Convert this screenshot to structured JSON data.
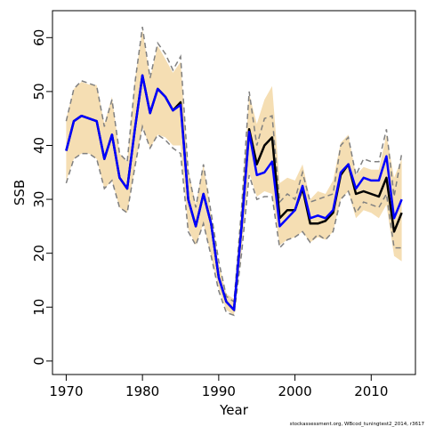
{
  "chart_data": {
    "type": "line",
    "xlabel": "Year",
    "ylabel": "SSB",
    "xlim": [
      1968.2,
      2015.8
    ],
    "ylim": [
      -2.5,
      65.0
    ],
    "x_ticks": [
      1970,
      1980,
      1990,
      2000,
      2010
    ],
    "y_ticks": [
      0,
      10,
      20,
      30,
      40,
      50,
      60
    ],
    "colors": {
      "band": "#f5deb3",
      "ci_dashed": "#808080",
      "ssb_black": "#000000",
      "ssb_blue": "#0000ff"
    },
    "x": [
      1970,
      1971,
      1972,
      1973,
      1974,
      1975,
      1976,
      1977,
      1978,
      1979,
      1980,
      1981,
      1982,
      1983,
      1984,
      1985,
      1986,
      1987,
      1988,
      1989,
      1990,
      1991,
      1992,
      1993,
      1994,
      1995,
      1996,
      1997,
      1998,
      1999,
      2000,
      2001,
      2002,
      2003,
      2004,
      2005,
      2006,
      2007,
      2008,
      2009,
      2010,
      2011,
      2012,
      2013,
      2014
    ],
    "band_upper": [
      45.0,
      50.5,
      51.8,
      51.3,
      51.2,
      44.0,
      49.0,
      38.5,
      37.0,
      52.0,
      61.5,
      52.5,
      58.5,
      56.0,
      53.5,
      55.5,
      35.5,
      29.0,
      36.5,
      27.0,
      18.0,
      12.5,
      11.5,
      29.0,
      49.5,
      44.0,
      48.5,
      51.0,
      33.0,
      34.0,
      33.5,
      36.5,
      30.0,
      31.5,
      31.0,
      33.5,
      40.5,
      42.0,
      34.5,
      36.0,
      35.5,
      35.5,
      42.0,
      34.0,
      37.5
    ],
    "band_lower": [
      33.5,
      37.5,
      38.5,
      38.5,
      37.5,
      32.0,
      33.5,
      28.5,
      27.5,
      36.0,
      43.5,
      39.5,
      42.0,
      41.5,
      40.0,
      40.0,
      24.5,
      21.5,
      25.5,
      19.5,
      13.5,
      9.5,
      8.5,
      20.5,
      35.0,
      30.5,
      31.5,
      31.0,
      21.5,
      22.5,
      23.0,
      24.0,
      22.0,
      23.0,
      22.5,
      24.0,
      30.0,
      31.5,
      26.5,
      28.0,
      27.5,
      26.5,
      29.0,
      19.5,
      18.5
    ],
    "ci_upper": [
      44.5,
      50.5,
      52.0,
      51.5,
      51.0,
      43.5,
      48.5,
      38.5,
      37.0,
      51.5,
      62.0,
      52.5,
      59.0,
      57.0,
      54.0,
      56.5,
      35.0,
      28.5,
      36.5,
      27.5,
      18.5,
      12.0,
      11.0,
      28.5,
      50.0,
      40.0,
      45.0,
      45.5,
      29.5,
      31.0,
      30.0,
      35.0,
      29.5,
      30.0,
      30.5,
      31.0,
      40.0,
      41.5,
      34.5,
      37.5,
      37.0,
      37.0,
      43.0,
      30.5,
      38.5
    ],
    "ci_lower": [
      33.0,
      37.5,
      38.5,
      38.5,
      37.5,
      32.0,
      33.5,
      28.5,
      27.5,
      36.0,
      43.5,
      39.5,
      42.0,
      41.0,
      39.5,
      38.5,
      24.0,
      21.5,
      25.5,
      19.5,
      13.0,
      9.0,
      8.5,
      20.0,
      34.5,
      30.0,
      30.5,
      30.5,
      21.0,
      22.5,
      23.0,
      24.0,
      22.0,
      23.5,
      22.5,
      24.0,
      30.0,
      31.5,
      27.5,
      29.5,
      29.0,
      28.5,
      31.0,
      21.0,
      21.0
    ],
    "series": [
      {
        "values": [
          39.0,
          44.5,
          45.5,
          45.0,
          44.5,
          37.5,
          42.0,
          34.0,
          32.0,
          43.0,
          53.0,
          46.0,
          50.5,
          49.0,
          46.5,
          48.0,
          30.0,
          25.0,
          31.0,
          25.5,
          15.5,
          11.0,
          9.5,
          25.0,
          43.0,
          36.5,
          40.0,
          41.5,
          26.5,
          28.0,
          28.0,
          32.0,
          25.5,
          25.5,
          26.0,
          27.5,
          34.5,
          36.5,
          31.0,
          31.5,
          31.0,
          30.5,
          34.0,
          24.0,
          27.5
        ]
      },
      {
        "values": [
          39.0,
          44.5,
          45.5,
          45.0,
          44.5,
          37.5,
          42.0,
          34.0,
          32.0,
          43.0,
          53.0,
          46.0,
          50.5,
          49.0,
          46.5,
          47.5,
          30.0,
          25.0,
          31.0,
          25.5,
          15.5,
          11.0,
          9.5,
          25.0,
          42.5,
          34.5,
          35.0,
          37.0,
          25.0,
          26.5,
          28.0,
          32.5,
          26.5,
          27.0,
          26.5,
          28.0,
          35.0,
          36.5,
          32.0,
          34.0,
          33.5,
          33.5,
          38.0,
          26.5,
          30.0
        ]
      }
    ],
    "footnote": "stockassessment.org, WBcod_tuningtest2_2014, r3617"
  }
}
